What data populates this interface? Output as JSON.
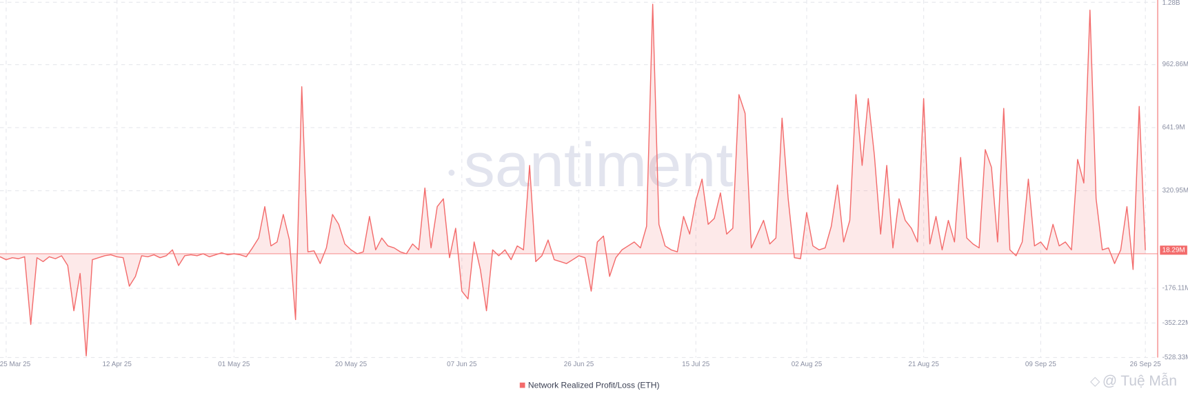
{
  "chart_data": {
    "type": "line",
    "x": [
      "2025-03-24",
      "2025-03-25",
      "2025-03-26",
      "2025-03-27",
      "2025-03-28",
      "2025-03-29",
      "2025-03-30",
      "2025-03-31",
      "2025-04-01",
      "2025-04-02",
      "2025-04-03",
      "2025-04-04",
      "2025-04-05",
      "2025-04-06",
      "2025-04-07",
      "2025-04-08",
      "2025-04-09",
      "2025-04-10",
      "2025-04-11",
      "2025-04-12",
      "2025-04-13",
      "2025-04-14",
      "2025-04-15",
      "2025-04-16",
      "2025-04-17",
      "2025-04-18",
      "2025-04-19",
      "2025-04-20",
      "2025-04-21",
      "2025-04-22",
      "2025-04-23",
      "2025-04-24",
      "2025-04-25",
      "2025-04-26",
      "2025-04-27",
      "2025-04-28",
      "2025-04-29",
      "2025-04-30",
      "2025-05-01",
      "2025-05-02",
      "2025-05-03",
      "2025-05-04",
      "2025-05-05",
      "2025-05-06",
      "2025-05-07",
      "2025-05-08",
      "2025-05-09",
      "2025-05-10",
      "2025-05-11",
      "2025-05-12",
      "2025-05-13",
      "2025-05-14",
      "2025-05-15",
      "2025-05-16",
      "2025-05-17",
      "2025-05-18",
      "2025-05-19",
      "2025-05-20",
      "2025-05-21",
      "2025-05-22",
      "2025-05-23",
      "2025-05-24",
      "2025-05-25",
      "2025-05-26",
      "2025-05-27",
      "2025-05-28",
      "2025-05-29",
      "2025-05-30",
      "2025-05-31",
      "2025-06-01",
      "2025-06-02",
      "2025-06-03",
      "2025-06-04",
      "2025-06-05",
      "2025-06-06",
      "2025-06-07",
      "2025-06-08",
      "2025-06-09",
      "2025-06-10",
      "2025-06-11",
      "2025-06-12",
      "2025-06-13",
      "2025-06-14",
      "2025-06-15",
      "2025-06-16",
      "2025-06-17",
      "2025-06-18",
      "2025-06-19",
      "2025-06-20",
      "2025-06-21",
      "2025-06-22",
      "2025-06-23",
      "2025-06-24",
      "2025-06-25",
      "2025-06-26",
      "2025-06-27",
      "2025-06-28",
      "2025-06-29",
      "2025-06-30",
      "2025-07-01",
      "2025-07-02",
      "2025-07-03",
      "2025-07-04",
      "2025-07-05",
      "2025-07-06",
      "2025-07-07",
      "2025-07-08",
      "2025-07-09",
      "2025-07-10",
      "2025-07-11",
      "2025-07-12",
      "2025-07-13",
      "2025-07-14",
      "2025-07-15",
      "2025-07-16",
      "2025-07-17",
      "2025-07-18",
      "2025-07-19",
      "2025-07-20",
      "2025-07-21",
      "2025-07-22",
      "2025-07-23",
      "2025-07-24",
      "2025-07-25",
      "2025-07-26",
      "2025-07-27",
      "2025-07-28",
      "2025-07-29",
      "2025-07-30",
      "2025-07-31",
      "2025-08-01",
      "2025-08-02",
      "2025-08-03",
      "2025-08-04",
      "2025-08-05",
      "2025-08-06",
      "2025-08-07",
      "2025-08-08",
      "2025-08-09",
      "2025-08-10",
      "2025-08-11",
      "2025-08-12",
      "2025-08-13",
      "2025-08-14",
      "2025-08-15",
      "2025-08-16",
      "2025-08-17",
      "2025-08-18",
      "2025-08-19",
      "2025-08-20",
      "2025-08-21",
      "2025-08-22",
      "2025-08-23",
      "2025-08-24",
      "2025-08-25",
      "2025-08-26",
      "2025-08-27",
      "2025-08-28",
      "2025-08-29",
      "2025-08-30",
      "2025-08-31",
      "2025-09-01",
      "2025-09-02",
      "2025-09-03",
      "2025-09-04",
      "2025-09-05",
      "2025-09-06",
      "2025-09-07",
      "2025-09-08",
      "2025-09-09",
      "2025-09-10",
      "2025-09-11",
      "2025-09-12",
      "2025-09-13",
      "2025-09-14",
      "2025-09-15",
      "2025-09-16",
      "2025-09-17",
      "2025-09-18",
      "2025-09-19",
      "2025-09-20",
      "2025-09-21",
      "2025-09-22",
      "2025-09-23",
      "2025-09-24",
      "2025-09-25",
      "2025-09-26"
    ],
    "series": [
      {
        "name": "Network Realized Profit/Loss (ETH)",
        "color": "#f36b6b",
        "values": [
          -15,
          -30,
          -20,
          -25,
          -15,
          -360,
          -20,
          -40,
          -15,
          -25,
          -10,
          -60,
          -290,
          -100,
          -520,
          -30,
          -20,
          -10,
          -5,
          -15,
          -20,
          -165,
          -115,
          -10,
          -15,
          -5,
          -20,
          -10,
          20,
          -60,
          -10,
          -5,
          -10,
          0,
          -15,
          -5,
          5,
          -5,
          0,
          -5,
          -15,
          30,
          80,
          240,
          40,
          60,
          200,
          70,
          -335,
          850,
          10,
          15,
          -50,
          30,
          200,
          150,
          50,
          20,
          0,
          10,
          190,
          20,
          80,
          40,
          30,
          10,
          0,
          50,
          20,
          335,
          30,
          240,
          280,
          -20,
          130,
          -190,
          -230,
          60,
          -80,
          -290,
          20,
          -10,
          20,
          -30,
          40,
          20,
          450,
          -40,
          -10,
          70,
          -30,
          -40,
          -50,
          -30,
          -10,
          -20,
          -190,
          60,
          90,
          -115,
          -20,
          20,
          40,
          60,
          30,
          140,
          1270,
          150,
          40,
          20,
          10,
          190,
          100,
          270,
          380,
          150,
          180,
          310,
          100,
          130,
          810,
          715,
          30,
          100,
          170,
          50,
          80,
          690,
          280,
          -20,
          -25,
          210,
          40,
          20,
          30,
          140,
          350,
          60,
          170,
          810,
          450,
          790,
          500,
          100,
          450,
          30,
          280,
          170,
          130,
          60,
          790,
          50,
          190,
          20,
          170,
          60,
          490,
          80,
          50,
          30,
          530,
          440,
          60,
          740,
          20,
          -10,
          60,
          380,
          40,
          60,
          20,
          150,
          40,
          60,
          20,
          480,
          360,
          1240,
          280,
          20,
          30,
          -50,
          20,
          240,
          -80,
          750,
          18.29
        ]
      }
    ],
    "last_value_label": "18.29M",
    "xlim": [
      "2025-03-24",
      "2025-09-28"
    ],
    "xticks": [
      {
        "value": "2025-03-25",
        "label": "25 Mar 25"
      },
      {
        "value": "2025-04-12",
        "label": "12 Apr 25"
      },
      {
        "value": "2025-05-01",
        "label": "01 May 25"
      },
      {
        "value": "2025-05-20",
        "label": "20 May 25"
      },
      {
        "value": "2025-06-07",
        "label": "07 Jun 25"
      },
      {
        "value": "2025-06-26",
        "label": "26 Jun 25"
      },
      {
        "value": "2025-07-15",
        "label": "15 Jul 25"
      },
      {
        "value": "2025-08-02",
        "label": "02 Aug 25"
      },
      {
        "value": "2025-08-21",
        "label": "21 Aug 25"
      },
      {
        "value": "2025-09-09",
        "label": "09 Sep 25"
      },
      {
        "value": "2025-09-26",
        "label": "26 Sep 25"
      }
    ],
    "ylim": [
      -528.33,
      1280
    ],
    "yticks": [
      {
        "value": -528.33,
        "label": "-528.33M"
      },
      {
        "value": -352.22,
        "label": "-352.22M"
      },
      {
        "value": -176.11,
        "label": "-176.11M"
      },
      {
        "value": 320.95,
        "label": "320.95M"
      },
      {
        "value": 641.9,
        "label": "641.9M"
      },
      {
        "value": 962.86,
        "label": "962.86M"
      },
      {
        "value": 1280,
        "label": "1.28B"
      }
    ],
    "grid": true,
    "watermark": "santiment",
    "credit": "@ Tuệ Mẫn"
  }
}
